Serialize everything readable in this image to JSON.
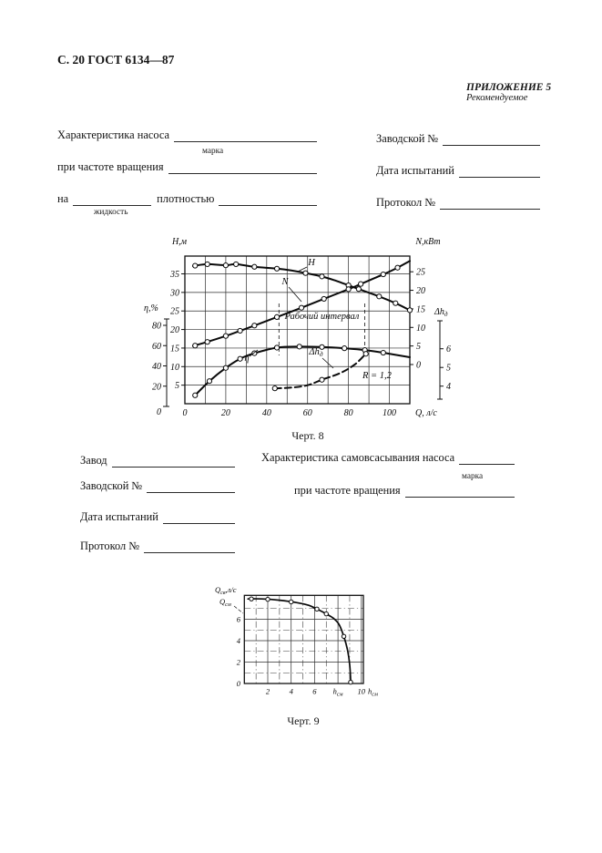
{
  "header": {
    "page_ref": "С. 20 ГОСТ 6134—87",
    "appendix": "ПРИЛОЖЕНИЕ 5",
    "appendix_note": "Рекомендуемое"
  },
  "form_top": {
    "left": {
      "row1_label": "Характеристика насоса",
      "row1_sub": "марка",
      "row2_label": "при частоте вращения",
      "row3_label_a": "на",
      "row3_sub": "жидкость",
      "row3_label_b": "плотностью"
    },
    "right": {
      "row1_label": "Заводской №",
      "row2_label": "Дата испытаний",
      "row3_label": "Протокол №"
    }
  },
  "form_mid": {
    "left": {
      "row1_label": "Завод",
      "row2_label": "Заводской №",
      "row3_label": "Дата испытаний",
      "row4_label": "Протокол №"
    },
    "right": {
      "row1_label": "Характеристика самовсасывания насоса",
      "row1_sub": "марка",
      "row2_label": "при частоте вращения"
    }
  },
  "captions": {
    "chart8": "Черт. 8",
    "chart9": "Черт. 9"
  },
  "chart_data": [
    {
      "id": "chart8",
      "type": "line",
      "caption": "Черт. 8",
      "x_axis": {
        "label": "Q, л/с",
        "ticks": [
          0,
          20,
          40,
          60,
          80,
          100
        ],
        "range": [
          0,
          110
        ],
        "grid_step": 10
      },
      "y_axes": {
        "H": {
          "label": "Н,м",
          "ticks": [
            5,
            10,
            15,
            20,
            25,
            30,
            35
          ],
          "range": [
            0,
            39.8
          ],
          "grid_step": 5,
          "side": "left-inner"
        },
        "N": {
          "label": "N,кВт",
          "ticks": [
            0,
            5,
            10,
            15,
            20,
            25
          ],
          "range": [
            0,
            30
          ],
          "side": "right-inner"
        },
        "eta": {
          "label": "η,%",
          "ticks": [
            0,
            20,
            40,
            60,
            80
          ],
          "range": [
            0,
            86
          ],
          "side": "left-outer"
        },
        "dh": {
          "label": "Δh_{д}",
          "ticks": [
            4,
            5,
            6
          ],
          "range": [
            3.5,
            7
          ],
          "side": "right-outer"
        }
      },
      "series": [
        {
          "name": "H",
          "axis": "H",
          "dashed": false,
          "points": [
            [
              4,
              37.1
            ],
            [
              5,
              37.2
            ],
            [
              11,
              37.6
            ],
            [
              20,
              37.3
            ],
            [
              25,
              37.6
            ],
            [
              34,
              36.9
            ],
            [
              45,
              36.4
            ],
            [
              52,
              35.9
            ],
            [
              59,
              35.2
            ],
            [
              67,
              34.3
            ],
            [
              74,
              33.1
            ],
            [
              80,
              31.9
            ],
            [
              85,
              30.9
            ],
            [
              95,
              28.9
            ],
            [
              103,
              27.1
            ],
            [
              110,
              25.2
            ]
          ],
          "markers": [
            [
              5,
              37.2
            ],
            [
              11,
              37.6
            ],
            [
              20,
              37.3
            ],
            [
              25,
              37.6
            ],
            [
              34,
              36.9
            ],
            [
              45,
              36.4
            ],
            [
              59,
              35.2
            ],
            [
              67,
              34.3
            ],
            [
              80,
              31.9
            ],
            [
              85,
              30.9
            ],
            [
              95,
              28.9
            ],
            [
              103,
              27.1
            ],
            [
              110,
              25.2
            ]
          ]
        },
        {
          "name": "N",
          "axis": "N",
          "dashed": false,
          "points": [
            [
              4,
              5.0
            ],
            [
              11,
              6.1
            ],
            [
              20,
              7.7
            ],
            [
              27,
              9.1
            ],
            [
              34,
              10.5
            ],
            [
              45,
              12.8
            ],
            [
              57,
              15.3
            ],
            [
              68,
              17.7
            ],
            [
              80,
              20.3
            ],
            [
              86,
              21.7
            ],
            [
              97,
              24.3
            ],
            [
              104,
              26.1
            ],
            [
              110,
              27.9
            ]
          ],
          "markers": [
            [
              5,
              5.1
            ],
            [
              11,
              6.1
            ],
            [
              20,
              7.7
            ],
            [
              27,
              9.1
            ],
            [
              34,
              10.5
            ],
            [
              45,
              12.8
            ],
            [
              57,
              15.3
            ],
            [
              68,
              17.7
            ],
            [
              80,
              20.3
            ],
            [
              86,
              21.7
            ],
            [
              97,
              24.3
            ],
            [
              104,
              26.1
            ]
          ]
        },
        {
          "name": "η",
          "axis": "eta",
          "dashed": false,
          "points": [
            [
              5,
              11
            ],
            [
              12,
              25
            ],
            [
              20,
              38
            ],
            [
              27,
              47
            ],
            [
              34,
              52.5
            ],
            [
              45,
              58
            ],
            [
              56,
              59
            ],
            [
              67,
              58.6
            ],
            [
              78,
              57.4
            ],
            [
              88,
              55.6
            ],
            [
              97,
              53
            ],
            [
              110,
              48.5
            ]
          ],
          "markers": [
            [
              5,
              11
            ],
            [
              12,
              25
            ],
            [
              20,
              38
            ],
            [
              27,
              47
            ],
            [
              34,
              52.5
            ],
            [
              45,
              58
            ],
            [
              56,
              59
            ],
            [
              67,
              58.6
            ],
            [
              78,
              57.4
            ],
            [
              88,
              55.6
            ],
            [
              97,
              53
            ]
          ]
        },
        {
          "name": "Δh_{д}",
          "axis": "dh",
          "dashed": true,
          "points": [
            [
              44,
              3.88
            ],
            [
              52,
              3.92
            ],
            [
              60,
              4.05
            ],
            [
              67,
              4.34
            ],
            [
              76,
              4.7
            ],
            [
              83,
              5.15
            ],
            [
              88.5,
              5.73
            ]
          ],
          "markers": [
            [
              44,
              3.88
            ],
            [
              67,
              4.34
            ],
            [
              88.5,
              5.73
            ]
          ]
        }
      ],
      "annotations": {
        "working_interval": {
          "label": "Рабочий интервал",
          "from_q": 46,
          "to_q": 88
        },
        "r_value": "R = 1,2"
      },
      "grid": true
    },
    {
      "id": "chart9",
      "type": "line",
      "caption": "Черт. 9",
      "x_axis": {
        "label": "h_{см}",
        "tick_values": [
          2,
          4,
          6,
          8,
          10
        ],
        "tick_labels": [
          "2",
          "4",
          "6",
          "h_{см}",
          "10"
        ],
        "range": [
          0,
          10.2
        ]
      },
      "y_axis": {
        "label": "Q_{св},л/с",
        "ticks": [
          0,
          2,
          4,
          6
        ],
        "range": [
          0,
          8.2
        ]
      },
      "curve_label": "Q_{см}",
      "series": [
        {
          "name": "Q_{св}",
          "points": [
            [
              0.3,
              7.9
            ],
            [
              1.5,
              7.9
            ],
            [
              3,
              7.78
            ],
            [
              4.5,
              7.55
            ],
            [
              5.5,
              7.3
            ],
            [
              6.2,
              6.95
            ],
            [
              7,
              6.5
            ],
            [
              7.6,
              6.1
            ],
            [
              8.1,
              5.5
            ],
            [
              8.5,
              4.4
            ],
            [
              8.8,
              3.2
            ],
            [
              9.0,
              1.8
            ],
            [
              9.1,
              0.05
            ]
          ],
          "markers": [
            [
              0.6,
              7.9
            ],
            [
              2,
              7.86
            ],
            [
              4,
              7.62
            ],
            [
              6.2,
              6.95
            ],
            [
              7,
              6.5
            ],
            [
              8.5,
              4.4
            ],
            [
              9.08,
              0.12
            ]
          ]
        }
      ],
      "grid": true
    }
  ]
}
